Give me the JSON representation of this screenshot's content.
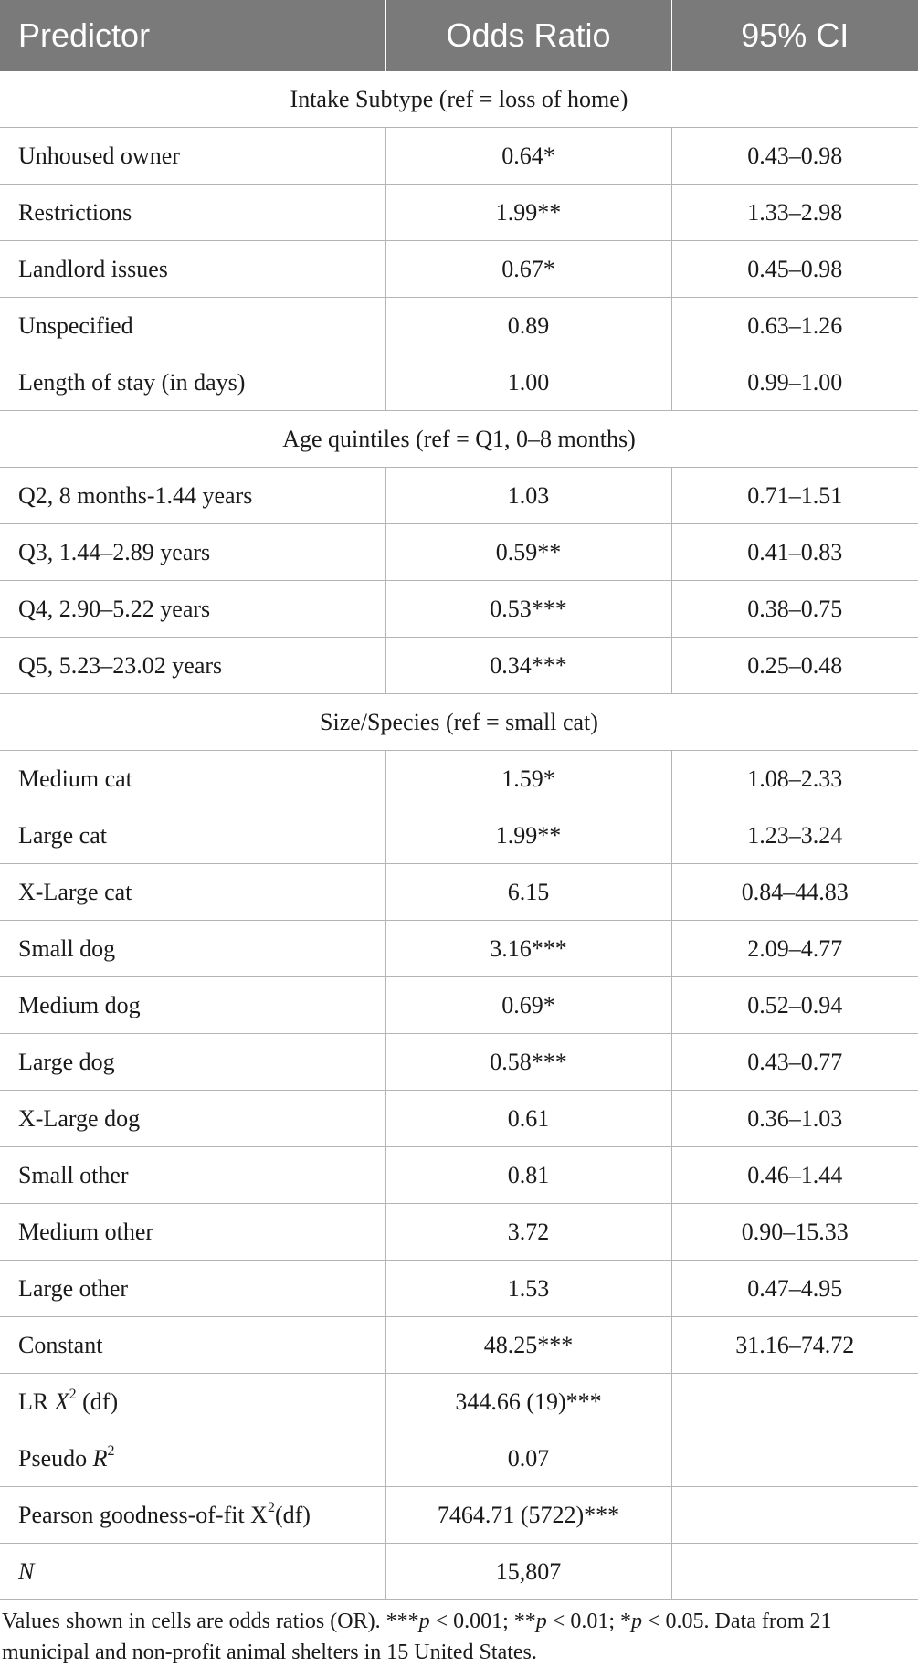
{
  "table": {
    "headers": [
      "Predictor",
      "Odds Ratio",
      "95% CI"
    ],
    "sections": [
      {
        "title": "Intake Subtype (ref = loss of home)",
        "rows": [
          {
            "label": "Unhoused owner",
            "or": "0.64*",
            "ci": "0.43–0.98"
          },
          {
            "label": "Restrictions",
            "or": "1.99**",
            "ci": "1.33–2.98"
          },
          {
            "label": "Landlord issues",
            "or": "0.67*",
            "ci": "0.45–0.98"
          },
          {
            "label": "Unspecified",
            "or": "0.89",
            "ci": "0.63–1.26"
          },
          {
            "label": "Length of stay (in days)",
            "or": "1.00",
            "ci": "0.99–1.00"
          }
        ]
      },
      {
        "title": "Age quintiles (ref = Q1, 0–8 months)",
        "rows": [
          {
            "label": "Q2, 8 months-1.44 years",
            "or": "1.03",
            "ci": "0.71–1.51"
          },
          {
            "label": "Q3, 1.44–2.89 years",
            "or": "0.59**",
            "ci": "0.41–0.83"
          },
          {
            "label": "Q4, 2.90–5.22 years",
            "or": "0.53***",
            "ci": "0.38–0.75"
          },
          {
            "label": "Q5, 5.23–23.02 years",
            "or": "0.34***",
            "ci": "0.25–0.48"
          }
        ]
      },
      {
        "title": "Size/Species (ref = small cat)",
        "rows": [
          {
            "label": "Medium cat",
            "or": "1.59*",
            "ci": "1.08–2.33"
          },
          {
            "label": "Large cat",
            "or": "1.99**",
            "ci": "1.23–3.24"
          },
          {
            "label": "X-Large cat",
            "or": "6.15",
            "ci": "0.84–44.83"
          },
          {
            "label": "Small dog",
            "or": "3.16***",
            "ci": "2.09–4.77"
          },
          {
            "label": "Medium dog",
            "or": "0.69*",
            "ci": "0.52–0.94"
          },
          {
            "label": "Large dog",
            "or": "0.58***",
            "ci": "0.43–0.77"
          },
          {
            "label": "X-Large dog",
            "or": "0.61",
            "ci": "0.36–1.03"
          },
          {
            "label": "Small other",
            "or": "0.81",
            "ci": "0.46–1.44"
          },
          {
            "label": "Medium other",
            "or": "3.72",
            "ci": "0.90–15.33"
          },
          {
            "label": "Large other",
            "or": "1.53",
            "ci": "0.47–4.95"
          },
          {
            "label": "Constant",
            "or": "48.25***",
            "ci": "31.16–74.72"
          }
        ]
      }
    ],
    "stats": {
      "lr": {
        "prefix": "LR ",
        "var": "X",
        "sup": "2",
        "suffix": " (df)",
        "value": "344.66 (19)***"
      },
      "pseudo": {
        "prefix": "Pseudo ",
        "var": "R",
        "sup": "2",
        "value": "0.07"
      },
      "pearson": {
        "prefix": "Pearson goodness-of-fit X",
        "sup": "2",
        "suffix": "(df)",
        "value": "7464.71 (5722)***"
      },
      "n": {
        "var": "N",
        "value": "15,807"
      }
    }
  },
  "footnote": {
    "part1": "Values shown in cells are odds ratios (OR). ***",
    "p": "p",
    "part2": " < 0.001; **",
    "part3": " < 0.01; *",
    "part4": " < 0.05. Data from 21 municipal and non-profit animal shelters in 15 United States."
  },
  "colors": {
    "header_bg": "#7a7a7a",
    "header_text": "#ffffff",
    "grid": "#b5b5b5"
  }
}
